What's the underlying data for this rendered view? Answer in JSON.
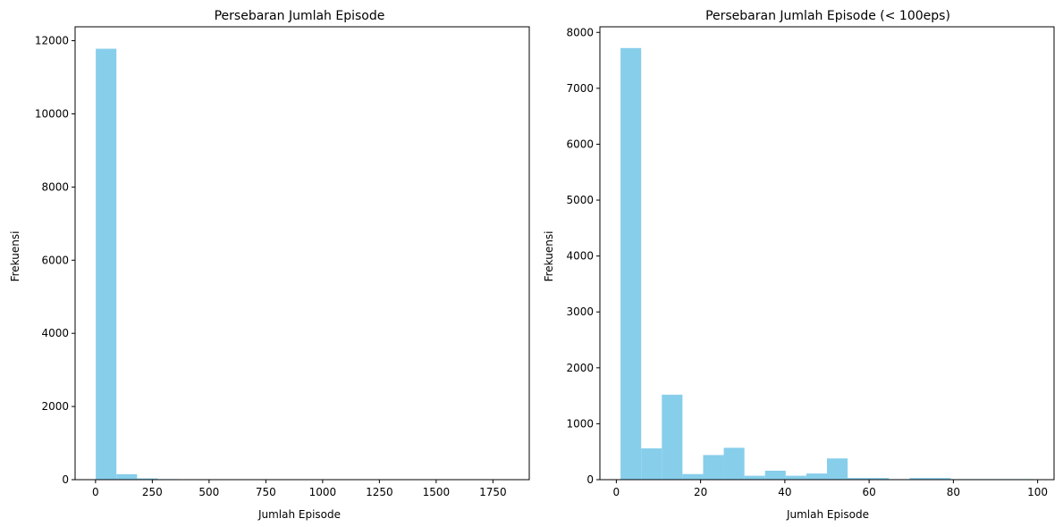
{
  "chart_data": [
    {
      "type": "bar",
      "title": "Persebaran Jumlah Episode",
      "xlabel": "Jumlah Episode",
      "ylabel": "Frekuensi",
      "xlim": [
        -90,
        1910
      ],
      "ylim": [
        0,
        12380
      ],
      "xticks": [
        0,
        250,
        500,
        750,
        1000,
        1250,
        1500,
        1750
      ],
      "yticks": [
        0,
        2000,
        4000,
        6000,
        8000,
        10000,
        12000
      ],
      "bin_width": 90.95,
      "bin_start": 1,
      "values": [
        11780,
        150,
        35,
        15,
        8,
        5,
        3,
        2,
        2,
        2,
        1,
        1,
        1,
        1,
        1,
        1,
        1,
        1,
        1,
        1
      ],
      "color": "#87ceeb",
      "grid": false
    },
    {
      "type": "bar",
      "title": "Persebaran Jumlah Episode (< 100eps)",
      "xlabel": "Jumlah Episode",
      "ylabel": "Frekuensi",
      "xlim": [
        -3.9,
        103.9
      ],
      "ylim": [
        0,
        8100
      ],
      "xticks": [
        0,
        20,
        40,
        60,
        80,
        100
      ],
      "yticks": [
        0,
        1000,
        2000,
        3000,
        4000,
        5000,
        6000,
        7000,
        8000
      ],
      "bin_width": 4.9,
      "bin_start": 1,
      "values": [
        7720,
        560,
        1520,
        100,
        440,
        570,
        70,
        160,
        70,
        110,
        380,
        30,
        30,
        10,
        30,
        30,
        10,
        10,
        10,
        10
      ],
      "color": "#87ceeb",
      "grid": false
    }
  ]
}
